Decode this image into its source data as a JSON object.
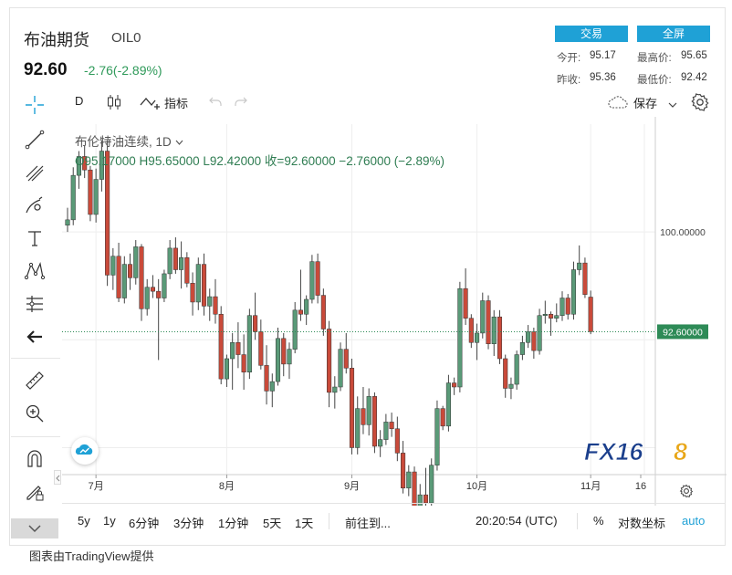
{
  "header": {
    "title": "布油期货",
    "code": "OIL0",
    "last_price": "92.60",
    "change": "-2.76(-2.89%)",
    "buttons": {
      "trade": "交易",
      "fullscreen": "全屏"
    },
    "quotes": {
      "open_label": "今开:",
      "open": "95.17",
      "high_label": "最高价:",
      "high": "95.65",
      "prev_label": "昨收:",
      "prev": "95.36",
      "low_label": "最低价:",
      "low": "92.42"
    }
  },
  "toolbar": {
    "interval": "D",
    "indicators": "指标",
    "save": "保存"
  },
  "legend": {
    "symbol": "布伦特油连续, 1D",
    "ohlc": "O95.17000  H95.65000  L92.42000  收=92.60000  −2.76000 (−2.89%)"
  },
  "bottom_bar": {
    "ranges": [
      "5y",
      "1y",
      "6分钟",
      "3分钟",
      "1分钟",
      "5天",
      "1天"
    ],
    "goto": "前往到...",
    "time": "20:20:54 (UTC)",
    "percent": "%",
    "log": "对数坐标",
    "auto": "auto"
  },
  "footer": "图表由TradingView提供",
  "logo": {
    "text": "FX168",
    "color_main": "#1b3f8c",
    "color_accent": "#e8a617"
  },
  "colors": {
    "up": "#5a9a78",
    "down": "#c94a3a",
    "grid": "#eeeeee",
    "price_tag": "#2e8b57",
    "accent": "#1fa1d6"
  },
  "chart_data": {
    "type": "candlestick",
    "series_label": "布伦特油连续, 1D",
    "price_label": "92.60000",
    "reference_level_label": "100.00000",
    "reference_level": 100,
    "x_ticks": [
      "7月",
      "8月",
      "9月",
      "10月",
      "11月",
      "16"
    ],
    "ylim": [
      82,
      108
    ],
    "candles": [
      [
        100.5,
        101.8,
        100.0,
        100.9
      ],
      [
        100.9,
        104.8,
        100.5,
        104.2
      ],
      [
        104.2,
        106.0,
        103.2,
        105.6
      ],
      [
        105.6,
        106.4,
        104.0,
        104.6
      ],
      [
        104.6,
        104.9,
        100.8,
        101.3
      ],
      [
        101.3,
        104.7,
        100.7,
        103.9
      ],
      [
        103.9,
        106.8,
        103.0,
        106.0
      ],
      [
        106.0,
        106.8,
        96.0,
        96.8
      ],
      [
        96.8,
        98.8,
        95.7,
        98.2
      ],
      [
        98.2,
        99.2,
        94.8,
        95.1
      ],
      [
        95.1,
        98.2,
        94.7,
        97.6
      ],
      [
        97.6,
        98.4,
        95.7,
        96.6
      ],
      [
        96.6,
        99.4,
        96.1,
        98.9
      ],
      [
        98.9,
        99.1,
        93.4,
        94.3
      ],
      [
        94.3,
        96.5,
        93.8,
        95.9
      ],
      [
        95.9,
        96.8,
        95.1,
        95.6
      ],
      [
        95.6,
        96.5,
        90.5,
        95.1
      ],
      [
        95.1,
        97.2,
        94.8,
        96.9
      ],
      [
        96.9,
        99.4,
        96.5,
        98.8
      ],
      [
        98.8,
        99.6,
        96.9,
        97.2
      ],
      [
        97.2,
        99.3,
        95.8,
        98.1
      ],
      [
        98.1,
        98.5,
        95.9,
        96.2
      ],
      [
        96.2,
        97.0,
        93.8,
        94.8
      ],
      [
        94.8,
        98.1,
        94.2,
        97.6
      ],
      [
        97.6,
        98.4,
        93.8,
        94.5
      ],
      [
        94.5,
        95.8,
        93.4,
        95.2
      ],
      [
        95.2,
        96.5,
        93.2,
        93.9
      ],
      [
        93.9,
        94.5,
        88.7,
        89.1
      ],
      [
        89.1,
        90.9,
        88.5,
        90.6
      ],
      [
        90.6,
        92.5,
        88.3,
        91.8
      ],
      [
        91.8,
        93.3,
        89.9,
        90.9
      ],
      [
        90.9,
        92.4,
        88.3,
        89.6
      ],
      [
        89.6,
        94.3,
        89.1,
        93.8
      ],
      [
        93.8,
        95.5,
        92.0,
        92.6
      ],
      [
        92.6,
        93.5,
        89.8,
        90.1
      ],
      [
        90.1,
        91.6,
        87.2,
        88.2
      ],
      [
        88.2,
        89.5,
        87.0,
        88.9
      ],
      [
        88.9,
        92.9,
        88.6,
        92.1
      ],
      [
        92.1,
        92.5,
        89.3,
        90.2
      ],
      [
        90.2,
        91.8,
        89.1,
        91.3
      ],
      [
        91.3,
        94.8,
        91.0,
        94.2
      ],
      [
        94.2,
        97.2,
        93.4,
        93.9
      ],
      [
        93.9,
        95.3,
        93.1,
        95.0
      ],
      [
        95.0,
        98.3,
        94.7,
        97.8
      ],
      [
        97.8,
        98.4,
        94.7,
        95.3
      ],
      [
        95.3,
        95.8,
        92.3,
        92.8
      ],
      [
        92.8,
        93.4,
        87.0,
        88.1
      ],
      [
        88.1,
        89.3,
        86.9,
        88.5
      ],
      [
        88.5,
        91.8,
        88.2,
        91.3
      ],
      [
        91.3,
        92.5,
        89.5,
        89.9
      ],
      [
        89.9,
        90.6,
        83.5,
        84.0
      ],
      [
        84.0,
        87.8,
        83.5,
        86.9
      ],
      [
        86.9,
        88.5,
        85.0,
        85.7
      ],
      [
        85.7,
        88.4,
        84.9,
        87.8
      ],
      [
        87.8,
        88.1,
        83.6,
        84.1
      ],
      [
        84.1,
        85.3,
        83.3,
        84.6
      ],
      [
        84.6,
        86.5,
        84.2,
        85.9
      ],
      [
        85.9,
        86.6,
        84.8,
        85.4
      ],
      [
        85.4,
        86.3,
        83.0,
        83.6
      ],
      [
        83.6,
        84.5,
        80.6,
        81.0
      ],
      [
        81.0,
        82.7,
        80.4,
        82.2
      ],
      [
        82.2,
        82.6,
        78.2,
        78.6
      ],
      [
        78.6,
        81.3,
        78.2,
        80.5
      ],
      [
        80.5,
        82.5,
        79.5,
        79.9
      ],
      [
        79.9,
        83.2,
        79.5,
        82.7
      ],
      [
        82.7,
        87.5,
        82.3,
        86.9
      ],
      [
        86.9,
        87.1,
        85.3,
        85.6
      ],
      [
        85.6,
        89.4,
        85.2,
        88.8
      ],
      [
        88.8,
        89.2,
        87.9,
        88.5
      ],
      [
        88.5,
        96.3,
        88.1,
        95.8
      ],
      [
        95.8,
        97.3,
        93.1,
        93.6
      ],
      [
        93.6,
        93.9,
        91.4,
        91.8
      ],
      [
        91.8,
        93.2,
        90.5,
        92.5
      ],
      [
        92.5,
        95.5,
        92.1,
        94.9
      ],
      [
        94.9,
        95.3,
        91.3,
        91.7
      ],
      [
        91.7,
        94.2,
        90.8,
        93.7
      ],
      [
        93.7,
        94.2,
        90.2,
        90.6
      ],
      [
        90.6,
        90.9,
        87.7,
        88.4
      ],
      [
        88.4,
        89.2,
        87.6,
        88.7
      ],
      [
        88.7,
        91.2,
        88.3,
        90.9
      ],
      [
        90.9,
        92.3,
        90.5,
        91.8
      ],
      [
        91.8,
        93.1,
        91.4,
        92.6
      ],
      [
        92.6,
        92.9,
        90.6,
        91.2
      ],
      [
        91.2,
        94.3,
        90.9,
        93.8
      ],
      [
        93.8,
        94.9,
        93.2,
        93.9
      ],
      [
        93.9,
        94.1,
        92.3,
        93.6
      ],
      [
        93.6,
        94.7,
        93.3,
        93.8
      ],
      [
        93.8,
        95.6,
        93.4,
        95.1
      ],
      [
        95.1,
        95.4,
        93.5,
        93.9
      ],
      [
        93.9,
        97.8,
        93.5,
        97.2
      ],
      [
        97.2,
        99.0,
        96.8,
        97.7
      ],
      [
        97.7,
        98.1,
        95.1,
        95.36
      ],
      [
        95.17,
        95.65,
        92.42,
        92.6
      ]
    ]
  }
}
